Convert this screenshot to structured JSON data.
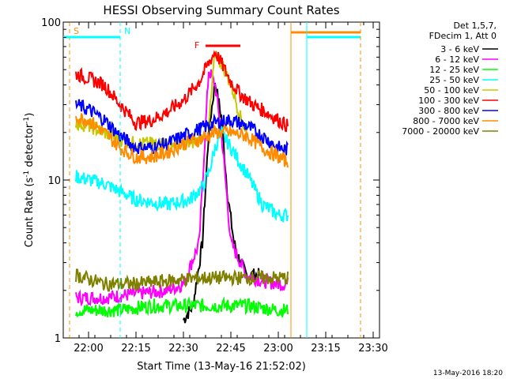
{
  "chart_data": {
    "type": "line",
    "title": "HESSI Observing Summary Count Rates",
    "xlabel": "Start Time (13-May-16 21:52:02)",
    "ylabel": "Count Rate (s",
    "ylabel_sup": "-1",
    "ylabel_tail": " detector",
    "ylabel_sup2": "-1",
    "ylabel_end": ")",
    "yscale": "log",
    "x_range": [
      "21:52",
      "23:32"
    ],
    "ylim": [
      1,
      100
    ],
    "x_ticks": [
      "22:00",
      "22:15",
      "22:30",
      "22:45",
      "23:00",
      "23:15",
      "23:30"
    ],
    "y_ticks": [
      "1",
      "10",
      "100"
    ],
    "grid": false,
    "legend_position": "right",
    "legend_header": [
      "Det 1,5,7,",
      "FDecim 1, Att 0"
    ],
    "footer": "13-May-2016 18:20",
    "markers": [
      {
        "label": "S",
        "color": "#ff8c00",
        "time": "21:54",
        "style": "dashed"
      },
      {
        "label": "N",
        "color": "#00ffff",
        "time": "22:10",
        "style": "dashed"
      },
      {
        "label": "F",
        "color": "#ff0000",
        "start": "22:37",
        "end": "22:48"
      }
    ],
    "segments": [
      {
        "color": "#ff8c00",
        "time": "23:04"
      },
      {
        "color": "#00ffff",
        "time": "23:09"
      },
      {
        "color": "#ff8c00",
        "time": "23:26",
        "style": "dashed"
      }
    ],
    "series": [
      {
        "name": "3 - 6 keV",
        "color": "#000000",
        "x": [
          "22:30",
          "22:33",
          "22:36",
          "22:38",
          "22:40",
          "22:42",
          "22:44",
          "22:46",
          "22:48",
          "22:50",
          "22:52",
          "22:54"
        ],
        "y": [
          1.3,
          1.6,
          4,
          20,
          42,
          25,
          8,
          4,
          3,
          2.5,
          2.5,
          2.5
        ]
      },
      {
        "name": "6 - 12 keV",
        "color": "#ff00ff",
        "x": [
          "21:56",
          "22:05",
          "22:15",
          "22:25",
          "22:30",
          "22:35",
          "22:38",
          "22:40",
          "22:42",
          "22:45",
          "22:50",
          "22:55",
          "23:00",
          "23:03"
        ],
        "y": [
          1.8,
          1.8,
          1.9,
          2,
          2.2,
          4,
          50,
          40,
          20,
          4,
          2.5,
          2.3,
          2.2,
          2.2
        ]
      },
      {
        "name": "12 - 25 keV",
        "color": "#00ff00",
        "x": [
          "21:56",
          "22:10",
          "22:20",
          "22:30",
          "22:40",
          "22:50",
          "23:00",
          "23:03"
        ],
        "y": [
          1.5,
          1.5,
          1.6,
          1.6,
          1.6,
          1.6,
          1.5,
          1.5
        ]
      },
      {
        "name": "25 - 50 keV",
        "color": "#00ffff",
        "x": [
          "21:56",
          "22:05",
          "22:15",
          "22:25",
          "22:32",
          "22:36",
          "22:38",
          "22:40",
          "22:42",
          "22:45",
          "22:50",
          "22:55",
          "23:00",
          "23:03"
        ],
        "y": [
          10.5,
          9.5,
          7.5,
          7,
          7.5,
          9,
          11,
          16,
          20,
          16,
          11,
          7,
          6,
          6
        ]
      },
      {
        "name": "50 - 100 keV",
        "color": "#c8c800",
        "x": [
          "21:56",
          "22:00",
          "22:05",
          "22:10",
          "22:15",
          "22:25",
          "22:32",
          "22:35",
          "22:38",
          "22:40",
          "22:42",
          "22:44",
          "22:46",
          "22:48",
          "22:50"
        ],
        "y": [
          23,
          22,
          20,
          18,
          17,
          17,
          17,
          18,
          22,
          65,
          55,
          45,
          35,
          25,
          20
        ]
      },
      {
        "name": "100 - 300 keV",
        "color": "#ff0000",
        "x": [
          "21:56",
          "22:00",
          "22:05",
          "22:10",
          "22:15",
          "22:20",
          "22:25",
          "22:30",
          "22:35",
          "22:38",
          "22:40",
          "22:42",
          "22:45",
          "22:48",
          "22:52",
          "22:56",
          "23:00",
          "23:03"
        ],
        "y": [
          47,
          44,
          40,
          30,
          23,
          24,
          27,
          32,
          42,
          55,
          65,
          55,
          42,
          35,
          30,
          27,
          24,
          22
        ]
      },
      {
        "name": "300 - 800 keV",
        "color": "#0000ff",
        "x": [
          "21:56",
          "22:00",
          "22:05",
          "22:10",
          "22:15",
          "22:20",
          "22:25",
          "22:30",
          "22:35",
          "22:40",
          "22:45",
          "22:50",
          "22:55",
          "23:00",
          "23:03"
        ],
        "y": [
          30,
          28,
          24,
          19,
          16,
          16,
          17,
          19,
          21,
          23,
          24,
          22,
          19,
          16,
          15.5
        ]
      },
      {
        "name": "800 - 7000 keV",
        "color": "#ff8c00",
        "x": [
          "21:56",
          "22:00",
          "22:05",
          "22:10",
          "22:15",
          "22:20",
          "22:25",
          "22:30",
          "22:35",
          "22:40",
          "22:45",
          "22:50",
          "22:55",
          "23:00",
          "23:03"
        ],
        "y": [
          25,
          24,
          20,
          16,
          14,
          14,
          15,
          17,
          18,
          20,
          20,
          19,
          16,
          14,
          13
        ]
      },
      {
        "name": "7000 - 20000 keV",
        "color": "#808000",
        "x": [
          "21:56",
          "22:05",
          "22:15",
          "22:25",
          "22:35",
          "22:45",
          "22:55",
          "23:03"
        ],
        "y": [
          2.5,
          2.2,
          2.2,
          2.3,
          2.4,
          2.4,
          2.4,
          2.4
        ]
      }
    ]
  }
}
